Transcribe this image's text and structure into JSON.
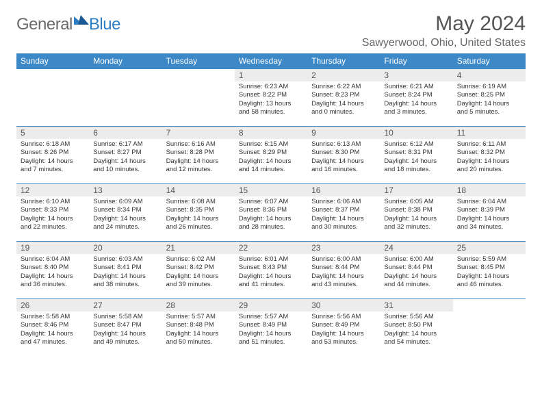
{
  "logo": {
    "general": "General",
    "blue": "Blue"
  },
  "title": "May 2024",
  "location": "Sawyerwood, Ohio, United States",
  "colors": {
    "header_bg": "#3d88c6",
    "header_text": "#ffffff",
    "daynum_bg": "#ececec",
    "border": "#3d88c6",
    "title_color": "#555555",
    "location_color": "#666666",
    "logo_gray": "#6a6a6a",
    "logo_blue": "#2c7fc4"
  },
  "weekdays": [
    "Sunday",
    "Monday",
    "Tuesday",
    "Wednesday",
    "Thursday",
    "Friday",
    "Saturday"
  ],
  "weeks": [
    [
      {
        "n": "",
        "sr": "",
        "ss": "",
        "dl": ""
      },
      {
        "n": "",
        "sr": "",
        "ss": "",
        "dl": ""
      },
      {
        "n": "",
        "sr": "",
        "ss": "",
        "dl": ""
      },
      {
        "n": "1",
        "sr": "Sunrise: 6:23 AM",
        "ss": "Sunset: 8:22 PM",
        "dl": "Daylight: 13 hours and 58 minutes."
      },
      {
        "n": "2",
        "sr": "Sunrise: 6:22 AM",
        "ss": "Sunset: 8:23 PM",
        "dl": "Daylight: 14 hours and 0 minutes."
      },
      {
        "n": "3",
        "sr": "Sunrise: 6:21 AM",
        "ss": "Sunset: 8:24 PM",
        "dl": "Daylight: 14 hours and 3 minutes."
      },
      {
        "n": "4",
        "sr": "Sunrise: 6:19 AM",
        "ss": "Sunset: 8:25 PM",
        "dl": "Daylight: 14 hours and 5 minutes."
      }
    ],
    [
      {
        "n": "5",
        "sr": "Sunrise: 6:18 AM",
        "ss": "Sunset: 8:26 PM",
        "dl": "Daylight: 14 hours and 7 minutes."
      },
      {
        "n": "6",
        "sr": "Sunrise: 6:17 AM",
        "ss": "Sunset: 8:27 PM",
        "dl": "Daylight: 14 hours and 10 minutes."
      },
      {
        "n": "7",
        "sr": "Sunrise: 6:16 AM",
        "ss": "Sunset: 8:28 PM",
        "dl": "Daylight: 14 hours and 12 minutes."
      },
      {
        "n": "8",
        "sr": "Sunrise: 6:15 AM",
        "ss": "Sunset: 8:29 PM",
        "dl": "Daylight: 14 hours and 14 minutes."
      },
      {
        "n": "9",
        "sr": "Sunrise: 6:13 AM",
        "ss": "Sunset: 8:30 PM",
        "dl": "Daylight: 14 hours and 16 minutes."
      },
      {
        "n": "10",
        "sr": "Sunrise: 6:12 AM",
        "ss": "Sunset: 8:31 PM",
        "dl": "Daylight: 14 hours and 18 minutes."
      },
      {
        "n": "11",
        "sr": "Sunrise: 6:11 AM",
        "ss": "Sunset: 8:32 PM",
        "dl": "Daylight: 14 hours and 20 minutes."
      }
    ],
    [
      {
        "n": "12",
        "sr": "Sunrise: 6:10 AM",
        "ss": "Sunset: 8:33 PM",
        "dl": "Daylight: 14 hours and 22 minutes."
      },
      {
        "n": "13",
        "sr": "Sunrise: 6:09 AM",
        "ss": "Sunset: 8:34 PM",
        "dl": "Daylight: 14 hours and 24 minutes."
      },
      {
        "n": "14",
        "sr": "Sunrise: 6:08 AM",
        "ss": "Sunset: 8:35 PM",
        "dl": "Daylight: 14 hours and 26 minutes."
      },
      {
        "n": "15",
        "sr": "Sunrise: 6:07 AM",
        "ss": "Sunset: 8:36 PM",
        "dl": "Daylight: 14 hours and 28 minutes."
      },
      {
        "n": "16",
        "sr": "Sunrise: 6:06 AM",
        "ss": "Sunset: 8:37 PM",
        "dl": "Daylight: 14 hours and 30 minutes."
      },
      {
        "n": "17",
        "sr": "Sunrise: 6:05 AM",
        "ss": "Sunset: 8:38 PM",
        "dl": "Daylight: 14 hours and 32 minutes."
      },
      {
        "n": "18",
        "sr": "Sunrise: 6:04 AM",
        "ss": "Sunset: 8:39 PM",
        "dl": "Daylight: 14 hours and 34 minutes."
      }
    ],
    [
      {
        "n": "19",
        "sr": "Sunrise: 6:04 AM",
        "ss": "Sunset: 8:40 PM",
        "dl": "Daylight: 14 hours and 36 minutes."
      },
      {
        "n": "20",
        "sr": "Sunrise: 6:03 AM",
        "ss": "Sunset: 8:41 PM",
        "dl": "Daylight: 14 hours and 38 minutes."
      },
      {
        "n": "21",
        "sr": "Sunrise: 6:02 AM",
        "ss": "Sunset: 8:42 PM",
        "dl": "Daylight: 14 hours and 39 minutes."
      },
      {
        "n": "22",
        "sr": "Sunrise: 6:01 AM",
        "ss": "Sunset: 8:43 PM",
        "dl": "Daylight: 14 hours and 41 minutes."
      },
      {
        "n": "23",
        "sr": "Sunrise: 6:00 AM",
        "ss": "Sunset: 8:44 PM",
        "dl": "Daylight: 14 hours and 43 minutes."
      },
      {
        "n": "24",
        "sr": "Sunrise: 6:00 AM",
        "ss": "Sunset: 8:44 PM",
        "dl": "Daylight: 14 hours and 44 minutes."
      },
      {
        "n": "25",
        "sr": "Sunrise: 5:59 AM",
        "ss": "Sunset: 8:45 PM",
        "dl": "Daylight: 14 hours and 46 minutes."
      }
    ],
    [
      {
        "n": "26",
        "sr": "Sunrise: 5:58 AM",
        "ss": "Sunset: 8:46 PM",
        "dl": "Daylight: 14 hours and 47 minutes."
      },
      {
        "n": "27",
        "sr": "Sunrise: 5:58 AM",
        "ss": "Sunset: 8:47 PM",
        "dl": "Daylight: 14 hours and 49 minutes."
      },
      {
        "n": "28",
        "sr": "Sunrise: 5:57 AM",
        "ss": "Sunset: 8:48 PM",
        "dl": "Daylight: 14 hours and 50 minutes."
      },
      {
        "n": "29",
        "sr": "Sunrise: 5:57 AM",
        "ss": "Sunset: 8:49 PM",
        "dl": "Daylight: 14 hours and 51 minutes."
      },
      {
        "n": "30",
        "sr": "Sunrise: 5:56 AM",
        "ss": "Sunset: 8:49 PM",
        "dl": "Daylight: 14 hours and 53 minutes."
      },
      {
        "n": "31",
        "sr": "Sunrise: 5:56 AM",
        "ss": "Sunset: 8:50 PM",
        "dl": "Daylight: 14 hours and 54 minutes."
      },
      {
        "n": "",
        "sr": "",
        "ss": "",
        "dl": ""
      }
    ]
  ]
}
